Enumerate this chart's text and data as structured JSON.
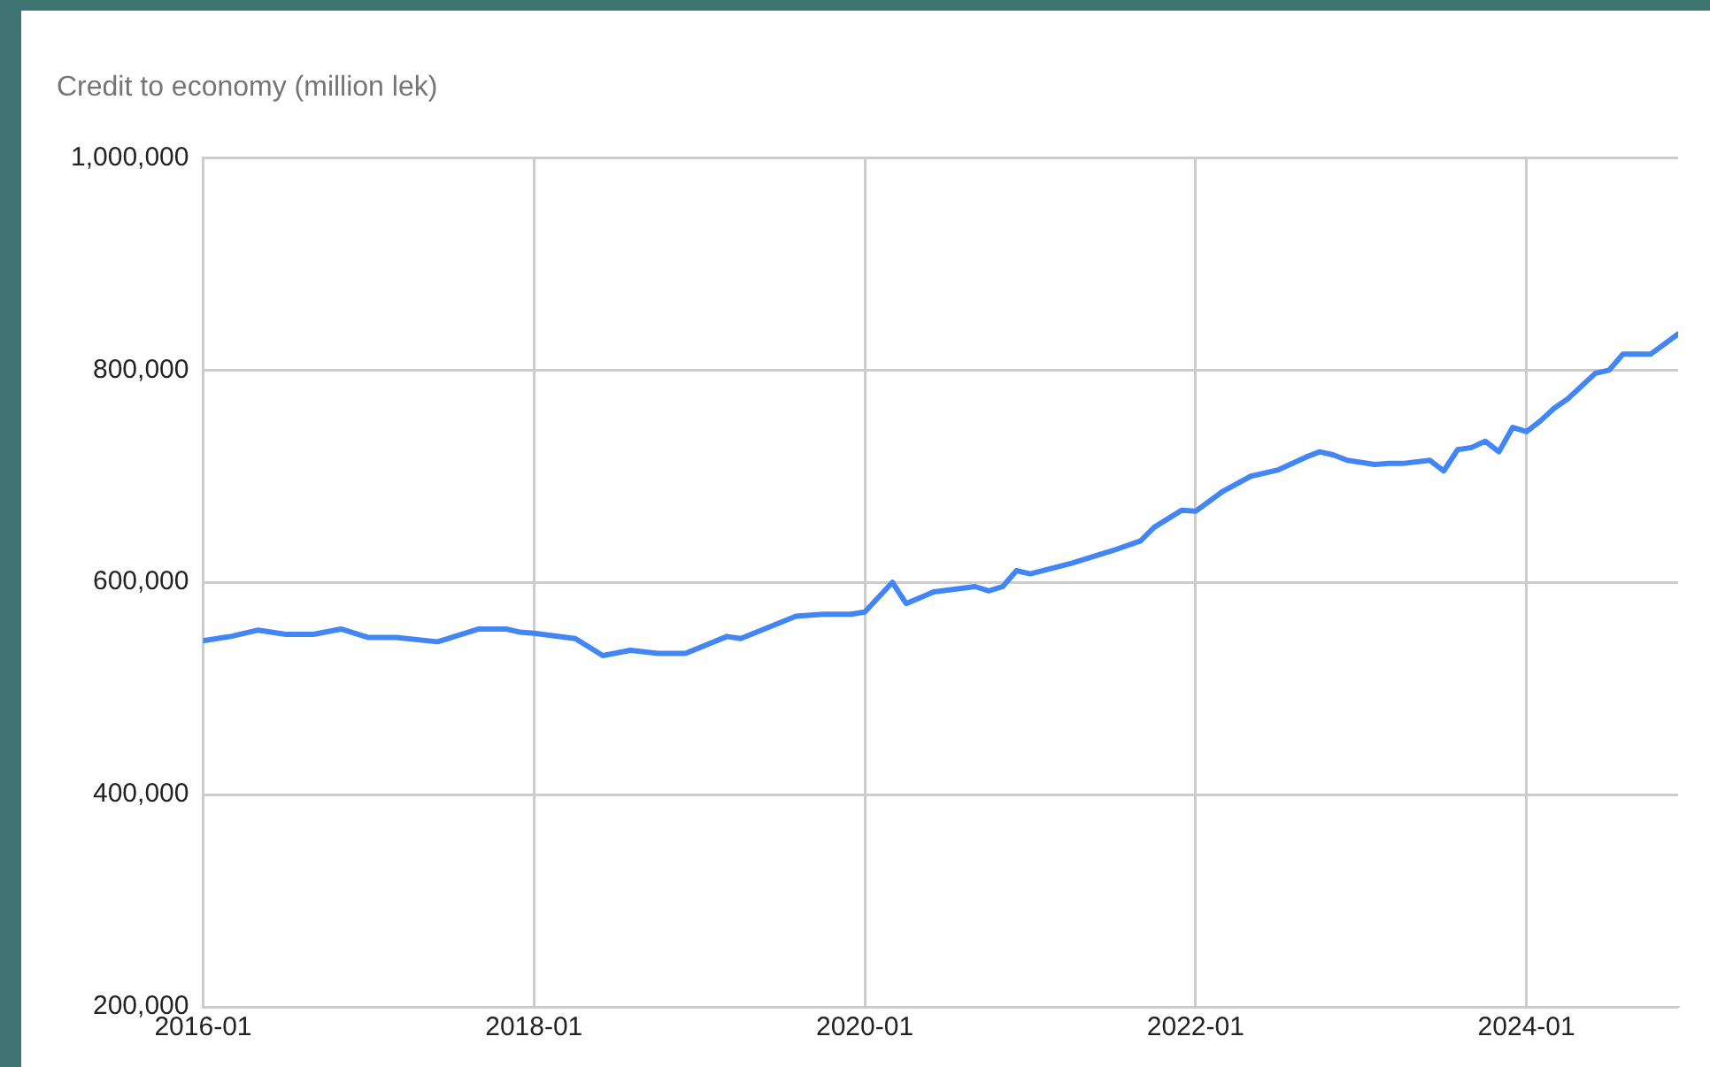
{
  "chart_data": {
    "type": "line",
    "title": "Credit to economy (million lek)",
    "x": [
      "2016-01",
      "2016-03",
      "2016-05",
      "2016-07",
      "2016-09",
      "2016-11",
      "2017-01",
      "2017-03",
      "2017-06",
      "2017-09",
      "2017-11",
      "2017-12",
      "2018-01",
      "2018-04",
      "2018-06",
      "2018-08",
      "2018-10",
      "2018-12",
      "2019-03",
      "2019-04",
      "2019-08",
      "2019-10",
      "2019-12",
      "2020-01",
      "2020-03",
      "2020-04",
      "2020-06",
      "2020-09",
      "2020-10",
      "2020-11",
      "2020-12",
      "2021-01",
      "2021-04",
      "2021-07",
      "2021-09",
      "2021-10",
      "2021-12",
      "2022-01",
      "2022-03",
      "2022-05",
      "2022-07",
      "2022-09",
      "2022-10",
      "2022-11",
      "2022-12",
      "2023-02",
      "2023-03",
      "2023-04",
      "2023-06",
      "2023-07",
      "2023-08",
      "2023-09",
      "2023-10",
      "2023-11",
      "2023-12",
      "2024-01",
      "2024-02",
      "2024-03",
      "2024-04",
      "2024-06",
      "2024-07",
      "2024-08",
      "2024-10",
      "2024-12"
    ],
    "series": [
      {
        "color": "#4285f4",
        "values": [
          545000,
          549000,
          555000,
          551000,
          551000,
          556000,
          548000,
          548000,
          544000,
          556000,
          556000,
          553000,
          552000,
          547000,
          531000,
          536000,
          533000,
          533000,
          549000,
          547000,
          568000,
          570000,
          570000,
          572000,
          600000,
          580000,
          591000,
          596000,
          592000,
          596000,
          611000,
          608000,
          618000,
          630000,
          639000,
          652000,
          668000,
          667000,
          686000,
          700000,
          706000,
          718000,
          723000,
          720000,
          715000,
          711000,
          712000,
          712000,
          715000,
          705000,
          725000,
          727000,
          733000,
          723000,
          746000,
          742000,
          752000,
          764000,
          773000,
          797000,
          800000,
          815000,
          815000,
          834000
        ]
      }
    ],
    "xlim": [
      "2016-01",
      "2024-12"
    ],
    "xticks": [
      "2016-01",
      "2018-01",
      "2020-01",
      "2022-01",
      "2024-01"
    ],
    "ylim": [
      200000,
      1000000
    ],
    "yticks": [
      {
        "value": 200000,
        "label": "200,000"
      },
      {
        "value": 400000,
        "label": "400,000"
      },
      {
        "value": 600000,
        "label": "600,000"
      },
      {
        "value": 800000,
        "label": "800,000"
      },
      {
        "value": 1000000,
        "label": "1,000,000"
      }
    ],
    "grid": true,
    "legend": false,
    "marker": "none",
    "line_style": "solid"
  }
}
